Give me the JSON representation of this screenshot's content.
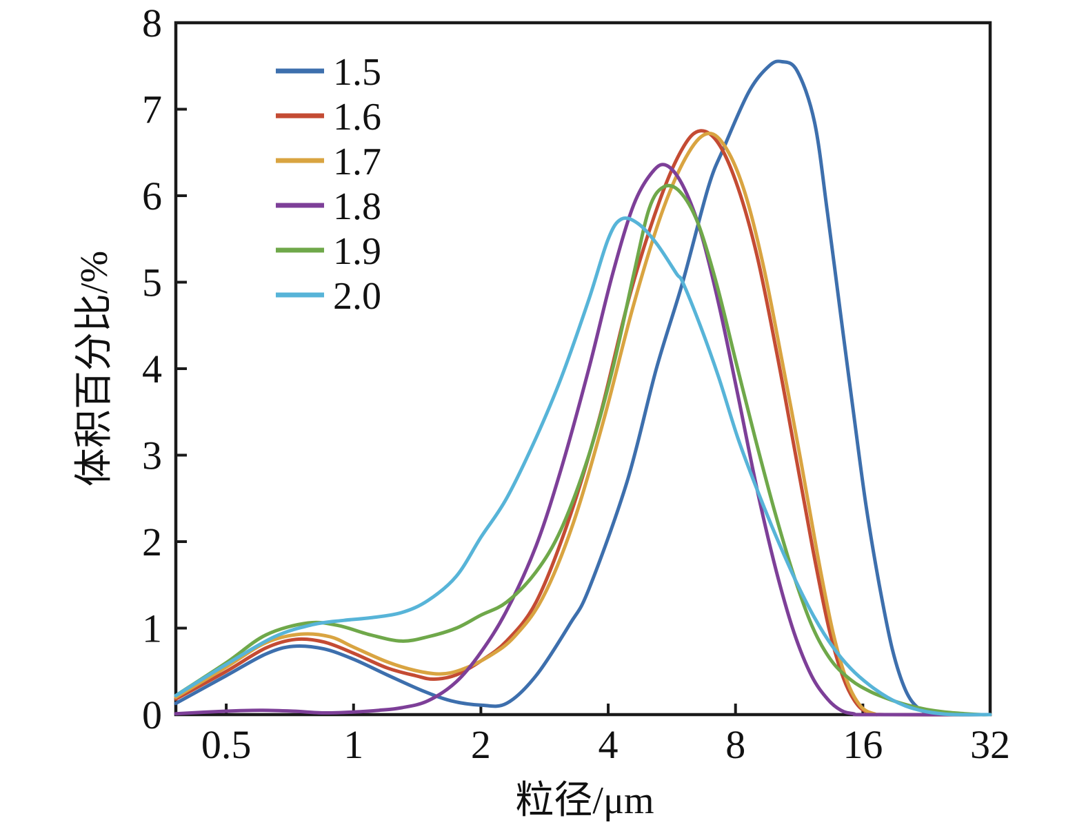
{
  "figure": {
    "background_color": "#ffffff",
    "axis_color": "#1a1a1a",
    "text_color": "#111111"
  },
  "chart_data": {
    "type": "line",
    "title": "",
    "xlabel": "粒径/μm",
    "ylabel": "体积百分比/%",
    "x_scale": "log2",
    "xlim": [
      0.38,
      32
    ],
    "ylim": [
      0,
      8
    ],
    "x_ticks": [
      0.5,
      1,
      2,
      4,
      8,
      16,
      32
    ],
    "x_tick_labels": [
      "0.5",
      "1",
      "2",
      "4",
      "8",
      "16",
      "32"
    ],
    "y_ticks": [
      0,
      1,
      2,
      3,
      4,
      5,
      6,
      7,
      8
    ],
    "y_tick_labels": [
      "0",
      "1",
      "2",
      "3",
      "4",
      "5",
      "6",
      "7",
      "8"
    ],
    "grid": false,
    "legend_position": "upper-left-inside",
    "series": [
      {
        "label": "1.5",
        "color": "#3d6fad",
        "points": [
          [
            0.38,
            0.13
          ],
          [
            0.5,
            0.45
          ],
          [
            0.62,
            0.7
          ],
          [
            0.72,
            0.79
          ],
          [
            0.85,
            0.76
          ],
          [
            1.0,
            0.64
          ],
          [
            1.2,
            0.46
          ],
          [
            1.45,
            0.28
          ],
          [
            1.7,
            0.16
          ],
          [
            2.0,
            0.11
          ],
          [
            2.3,
            0.13
          ],
          [
            2.7,
            0.45
          ],
          [
            3.25,
            1.05
          ],
          [
            3.6,
            1.45
          ],
          [
            4.43,
            2.69
          ],
          [
            5.2,
            4.0
          ],
          [
            6.0,
            5.0
          ],
          [
            6.9,
            6.1
          ],
          [
            7.5,
            6.55
          ],
          [
            8.6,
            7.2
          ],
          [
            9.6,
            7.5
          ],
          [
            10.3,
            7.55
          ],
          [
            11.2,
            7.44
          ],
          [
            12.3,
            6.85
          ],
          [
            13.2,
            5.8
          ],
          [
            14.2,
            4.6
          ],
          [
            15.2,
            3.5
          ],
          [
            16.3,
            2.4
          ],
          [
            17.5,
            1.5
          ],
          [
            18.8,
            0.75
          ],
          [
            20.2,
            0.28
          ],
          [
            21.7,
            0.07
          ],
          [
            23.5,
            0.01
          ],
          [
            26,
            0
          ],
          [
            32,
            0
          ]
        ]
      },
      {
        "label": "1.6",
        "color": "#c44b33",
        "points": [
          [
            0.38,
            0.18
          ],
          [
            0.5,
            0.5
          ],
          [
            0.62,
            0.77
          ],
          [
            0.73,
            0.87
          ],
          [
            0.85,
            0.84
          ],
          [
            1.0,
            0.71
          ],
          [
            1.2,
            0.54
          ],
          [
            1.4,
            0.45
          ],
          [
            1.55,
            0.41
          ],
          [
            1.75,
            0.46
          ],
          [
            2.0,
            0.62
          ],
          [
            2.3,
            0.85
          ],
          [
            2.7,
            1.3
          ],
          [
            3.2,
            2.2
          ],
          [
            3.8,
            3.4
          ],
          [
            4.5,
            4.85
          ],
          [
            5.3,
            5.95
          ],
          [
            6.0,
            6.55
          ],
          [
            6.6,
            6.75
          ],
          [
            7.3,
            6.6
          ],
          [
            8.1,
            6.1
          ],
          [
            9.0,
            5.3
          ],
          [
            10.0,
            4.2
          ],
          [
            11.1,
            3.0
          ],
          [
            12.2,
            1.9
          ],
          [
            13.3,
            1.0
          ],
          [
            14.4,
            0.42
          ],
          [
            15.5,
            0.12
          ],
          [
            16.6,
            0.02
          ],
          [
            18,
            0
          ],
          [
            32,
            0
          ]
        ]
      },
      {
        "label": "1.7",
        "color": "#d9a441",
        "points": [
          [
            0.38,
            0.2
          ],
          [
            0.5,
            0.55
          ],
          [
            0.62,
            0.83
          ],
          [
            0.75,
            0.93
          ],
          [
            0.88,
            0.9
          ],
          [
            1.0,
            0.78
          ],
          [
            1.2,
            0.61
          ],
          [
            1.4,
            0.51
          ],
          [
            1.6,
            0.47
          ],
          [
            1.8,
            0.52
          ],
          [
            2.1,
            0.68
          ],
          [
            2.4,
            0.9
          ],
          [
            2.8,
            1.35
          ],
          [
            3.3,
            2.2
          ],
          [
            3.9,
            3.4
          ],
          [
            4.6,
            4.75
          ],
          [
            5.4,
            5.85
          ],
          [
            6.2,
            6.5
          ],
          [
            6.9,
            6.72
          ],
          [
            7.6,
            6.55
          ],
          [
            8.4,
            6.05
          ],
          [
            9.3,
            5.2
          ],
          [
            10.3,
            4.1
          ],
          [
            11.4,
            2.95
          ],
          [
            12.5,
            1.85
          ],
          [
            13.6,
            0.95
          ],
          [
            14.7,
            0.38
          ],
          [
            15.8,
            0.1
          ],
          [
            17,
            0.01
          ],
          [
            18.5,
            0
          ],
          [
            32,
            0
          ]
        ]
      },
      {
        "label": "1.8",
        "color": "#7d3f98",
        "points": [
          [
            0.38,
            0.01
          ],
          [
            0.5,
            0.04
          ],
          [
            0.6,
            0.05
          ],
          [
            0.72,
            0.04
          ],
          [
            0.85,
            0.02
          ],
          [
            1.0,
            0.03
          ],
          [
            1.15,
            0.05
          ],
          [
            1.3,
            0.08
          ],
          [
            1.5,
            0.16
          ],
          [
            1.75,
            0.38
          ],
          [
            2.0,
            0.72
          ],
          [
            2.3,
            1.2
          ],
          [
            2.7,
            1.95
          ],
          [
            3.1,
            2.85
          ],
          [
            3.6,
            4.0
          ],
          [
            4.1,
            5.1
          ],
          [
            4.6,
            5.9
          ],
          [
            5.1,
            6.28
          ],
          [
            5.5,
            6.35
          ],
          [
            6.0,
            6.12
          ],
          [
            6.6,
            5.6
          ],
          [
            7.3,
            4.75
          ],
          [
            8.1,
            3.7
          ],
          [
            9.0,
            2.6
          ],
          [
            10.0,
            1.65
          ],
          [
            11.0,
            0.95
          ],
          [
            12.1,
            0.45
          ],
          [
            13.2,
            0.18
          ],
          [
            14.2,
            0.05
          ],
          [
            15.2,
            0.01
          ],
          [
            16.5,
            0
          ],
          [
            32,
            0
          ]
        ]
      },
      {
        "label": "1.9",
        "color": "#6fa84a",
        "points": [
          [
            0.38,
            0.22
          ],
          [
            0.5,
            0.6
          ],
          [
            0.62,
            0.92
          ],
          [
            0.78,
            1.06
          ],
          [
            0.92,
            1.03
          ],
          [
            1.1,
            0.92
          ],
          [
            1.3,
            0.85
          ],
          [
            1.5,
            0.9
          ],
          [
            1.75,
            1.0
          ],
          [
            2.0,
            1.15
          ],
          [
            2.3,
            1.3
          ],
          [
            2.7,
            1.65
          ],
          [
            3.1,
            2.15
          ],
          [
            3.6,
            3.0
          ],
          [
            4.1,
            4.0
          ],
          [
            4.6,
            5.1
          ],
          [
            5.0,
            5.85
          ],
          [
            5.4,
            6.1
          ],
          [
            5.9,
            6.05
          ],
          [
            6.5,
            5.7
          ],
          [
            7.2,
            5.0
          ],
          [
            8.0,
            4.1
          ],
          [
            8.9,
            3.2
          ],
          [
            9.9,
            2.35
          ],
          [
            11.0,
            1.6
          ],
          [
            12.2,
            1.0
          ],
          [
            13.5,
            0.62
          ],
          [
            15.0,
            0.4
          ],
          [
            16.6,
            0.27
          ],
          [
            18.4,
            0.18
          ],
          [
            20.4,
            0.11
          ],
          [
            22.6,
            0.06
          ],
          [
            25,
            0.03
          ],
          [
            28,
            0.01
          ],
          [
            30.5,
            0
          ],
          [
            32,
            0
          ]
        ]
      },
      {
        "label": "2.0",
        "color": "#57b4d8",
        "points": [
          [
            0.38,
            0.22
          ],
          [
            0.5,
            0.58
          ],
          [
            0.65,
            0.9
          ],
          [
            0.8,
            1.04
          ],
          [
            0.95,
            1.09
          ],
          [
            1.1,
            1.12
          ],
          [
            1.3,
            1.18
          ],
          [
            1.5,
            1.32
          ],
          [
            1.75,
            1.6
          ],
          [
            2.0,
            2.05
          ],
          [
            2.3,
            2.5
          ],
          [
            2.7,
            3.2
          ],
          [
            3.1,
            3.9
          ],
          [
            3.6,
            4.8
          ],
          [
            4.0,
            5.5
          ],
          [
            4.3,
            5.73
          ],
          [
            4.7,
            5.68
          ],
          [
            5.2,
            5.45
          ],
          [
            5.8,
            5.1
          ],
          [
            6.0,
            5.0
          ],
          [
            6.6,
            4.5
          ],
          [
            7.3,
            3.9
          ],
          [
            8.1,
            3.2
          ],
          [
            9.0,
            2.6
          ],
          [
            10.0,
            2.05
          ],
          [
            11.1,
            1.55
          ],
          [
            12.3,
            1.12
          ],
          [
            13.6,
            0.78
          ],
          [
            15.0,
            0.53
          ],
          [
            16.6,
            0.34
          ],
          [
            18.3,
            0.2
          ],
          [
            20.2,
            0.1
          ],
          [
            22.3,
            0.04
          ],
          [
            24.5,
            0.01
          ],
          [
            27,
            0
          ],
          [
            32,
            0
          ]
        ]
      }
    ]
  }
}
